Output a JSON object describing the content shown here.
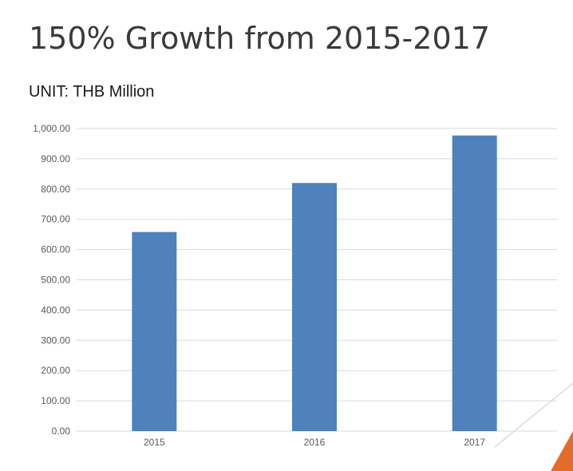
{
  "slide": {
    "title": "150% Growth from 2015-2017",
    "unit": "UNIT: THB Million"
  },
  "colors": {
    "bar": "#4f81bd",
    "grid": "#d9d9d9",
    "accent_orange": "#e36c2b",
    "accent_line": "#c9c9c9"
  },
  "chart_data": {
    "type": "bar",
    "categories": [
      "2015",
      "2016",
      "2017"
    ],
    "values": [
      658,
      820,
      977
    ],
    "ylim": [
      0,
      1000
    ],
    "yticks": [
      0,
      100,
      200,
      300,
      400,
      500,
      600,
      700,
      800,
      900,
      1000
    ],
    "ytick_labels": [
      "0.00",
      "100.00",
      "200.00",
      "300.00",
      "400.00",
      "500.00",
      "600.00",
      "700.00",
      "800.00",
      "900.00",
      "1,000.00"
    ],
    "grid": true,
    "legend": "none"
  }
}
